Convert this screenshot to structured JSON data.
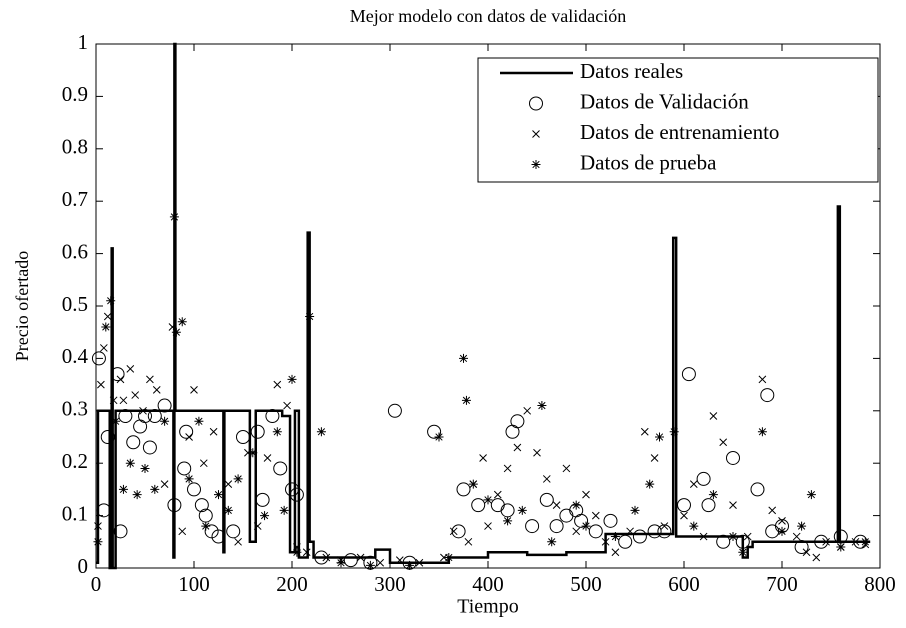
{
  "chart_data": {
    "type": "line_scatter",
    "title": "Mejor modelo con datos de validación",
    "xlabel": "Tiempo",
    "ylabel": "Precio ofertado",
    "xlim": [
      0,
      800
    ],
    "ylim": [
      0,
      1
    ],
    "xticks": [
      0,
      100,
      200,
      300,
      400,
      500,
      600,
      700,
      800
    ],
    "yticks": [
      0,
      0.1,
      0.2,
      0.3,
      0.4,
      0.5,
      0.6,
      0.7,
      0.8,
      0.9,
      1
    ],
    "legend": "upper right",
    "series": [
      {
        "name": "Datos reales",
        "style": "line",
        "color": "#000000",
        "x": [
          0,
          2,
          2,
          14,
          14,
          16,
          16,
          17,
          17,
          20,
          20,
          79,
          79,
          80,
          80,
          81,
          81,
          130,
          130,
          131,
          131,
          157,
          157,
          163,
          163,
          190,
          190,
          198,
          198,
          203,
          203,
          207,
          207,
          216,
          216,
          218,
          218,
          222,
          222,
          285,
          285,
          300,
          300,
          360,
          360,
          400,
          400,
          440,
          440,
          480,
          480,
          520,
          520,
          589,
          589,
          592,
          592,
          660,
          660,
          665,
          665,
          670,
          670,
          757,
          757,
          759,
          759,
          790
        ],
        "values": [
          0.01,
          0.01,
          0.3,
          0.3,
          0,
          0,
          0.61,
          0.61,
          0,
          0,
          0.3,
          0.3,
          0.02,
          0.02,
          1,
          1,
          0.3,
          0.3,
          0.03,
          0.03,
          0.3,
          0.3,
          0.05,
          0.05,
          0.3,
          0.3,
          0.29,
          0.29,
          0.03,
          0.03,
          0.3,
          0.3,
          0.02,
          0.02,
          0.64,
          0.64,
          0.05,
          0.05,
          0.02,
          0.02,
          0.035,
          0.035,
          0.01,
          0.01,
          0.02,
          0.02,
          0.03,
          0.03,
          0.025,
          0.025,
          0.03,
          0.03,
          0.065,
          0.065,
          0.63,
          0.63,
          0.06,
          0.06,
          0.02,
          0.02,
          0.04,
          0.04,
          0.05,
          0.05,
          0.69,
          0.69,
          0.05,
          0.05
        ]
      },
      {
        "name": "Datos de Validación",
        "style": "circle",
        "color": "#000000",
        "x": [
          3,
          8,
          12,
          22,
          25,
          30,
          38,
          45,
          50,
          55,
          60,
          70,
          80,
          90,
          92,
          100,
          108,
          112,
          118,
          125,
          140,
          150,
          165,
          170,
          180,
          188,
          200,
          205,
          230,
          260,
          280,
          305,
          320,
          345,
          370,
          375,
          390,
          410,
          420,
          425,
          430,
          445,
          460,
          470,
          480,
          490,
          495,
          510,
          525,
          540,
          555,
          570,
          580,
          600,
          605,
          620,
          625,
          640,
          650,
          660,
          675,
          685,
          690,
          700,
          720,
          740,
          760,
          780
        ],
        "values": [
          0.4,
          0.11,
          0.25,
          0.37,
          0.07,
          0.29,
          0.24,
          0.27,
          0.29,
          0.23,
          0.29,
          0.31,
          0.12,
          0.19,
          0.26,
          0.15,
          0.12,
          0.1,
          0.07,
          0.06,
          0.07,
          0.25,
          0.26,
          0.13,
          0.29,
          0.19,
          0.15,
          0.14,
          0.02,
          0.015,
          0.01,
          0.3,
          0.01,
          0.26,
          0.07,
          0.15,
          0.12,
          0.12,
          0.11,
          0.26,
          0.28,
          0.08,
          0.13,
          0.08,
          0.1,
          0.11,
          0.09,
          0.07,
          0.09,
          0.05,
          0.06,
          0.07,
          0.07,
          0.12,
          0.37,
          0.17,
          0.12,
          0.05,
          0.21,
          0.05,
          0.15,
          0.33,
          0.07,
          0.08,
          0.04,
          0.05,
          0.06,
          0.05
        ]
      },
      {
        "name": "Datos de entrenamiento",
        "style": "x",
        "color": "#000000",
        "x": [
          2,
          5,
          8,
          12,
          18,
          25,
          28,
          35,
          40,
          48,
          55,
          62,
          70,
          78,
          88,
          95,
          100,
          110,
          120,
          135,
          145,
          155,
          165,
          175,
          185,
          195,
          205,
          215,
          235,
          250,
          270,
          290,
          310,
          330,
          355,
          365,
          380,
          385,
          395,
          400,
          410,
          420,
          430,
          440,
          450,
          460,
          470,
          480,
          490,
          500,
          510,
          520,
          530,
          545,
          560,
          570,
          580,
          600,
          610,
          620,
          630,
          640,
          650,
          665,
          680,
          690,
          700,
          715,
          725,
          735,
          745,
          760,
          775,
          785
        ],
        "values": [
          0.08,
          0.35,
          0.42,
          0.48,
          0.32,
          0.36,
          0.32,
          0.38,
          0.33,
          0.3,
          0.36,
          0.34,
          0.16,
          0.46,
          0.07,
          0.25,
          0.34,
          0.2,
          0.26,
          0.16,
          0.05,
          0.22,
          0.08,
          0.21,
          0.35,
          0.31,
          0.04,
          0.03,
          0.02,
          0.015,
          0.02,
          0.01,
          0.015,
          0.01,
          0.02,
          0.07,
          0.05,
          0.16,
          0.21,
          0.08,
          0.14,
          0.19,
          0.23,
          0.3,
          0.22,
          0.17,
          0.12,
          0.19,
          0.07,
          0.14,
          0.1,
          0.05,
          0.03,
          0.07,
          0.26,
          0.21,
          0.08,
          0.1,
          0.16,
          0.06,
          0.29,
          0.24,
          0.12,
          0.06,
          0.36,
          0.11,
          0.09,
          0.06,
          0.03,
          0.02,
          0.05,
          0.04,
          0.05,
          0.045
        ]
      },
      {
        "name": "Datos de prueba",
        "style": "star",
        "color": "#000000",
        "x": [
          2,
          10,
          15,
          20,
          28,
          35,
          42,
          50,
          60,
          70,
          80,
          82,
          88,
          95,
          105,
          112,
          125,
          135,
          145,
          160,
          172,
          185,
          192,
          200,
          205,
          218,
          230,
          250,
          280,
          320,
          350,
          360,
          375,
          378,
          385,
          400,
          420,
          435,
          455,
          465,
          490,
          500,
          530,
          550,
          565,
          575,
          590,
          610,
          630,
          650,
          660,
          680,
          700,
          720,
          730,
          760,
          785
        ],
        "values": [
          0.05,
          0.46,
          0.51,
          0.28,
          0.15,
          0.2,
          0.14,
          0.19,
          0.15,
          0.28,
          0.67,
          0.45,
          0.47,
          0.17,
          0.28,
          0.08,
          0.14,
          0.11,
          0.17,
          0.22,
          0.1,
          0.26,
          0.11,
          0.36,
          0.03,
          0.48,
          0.26,
          0.01,
          0.005,
          0.005,
          0.25,
          0.02,
          0.4,
          0.32,
          0.16,
          0.13,
          0.09,
          0.11,
          0.31,
          0.05,
          0.12,
          0.08,
          0.06,
          0.11,
          0.16,
          0.25,
          0.26,
          0.08,
          0.14,
          0.06,
          0.03,
          0.26,
          0.07,
          0.08,
          0.14,
          0.04,
          0.05
        ]
      }
    ]
  }
}
